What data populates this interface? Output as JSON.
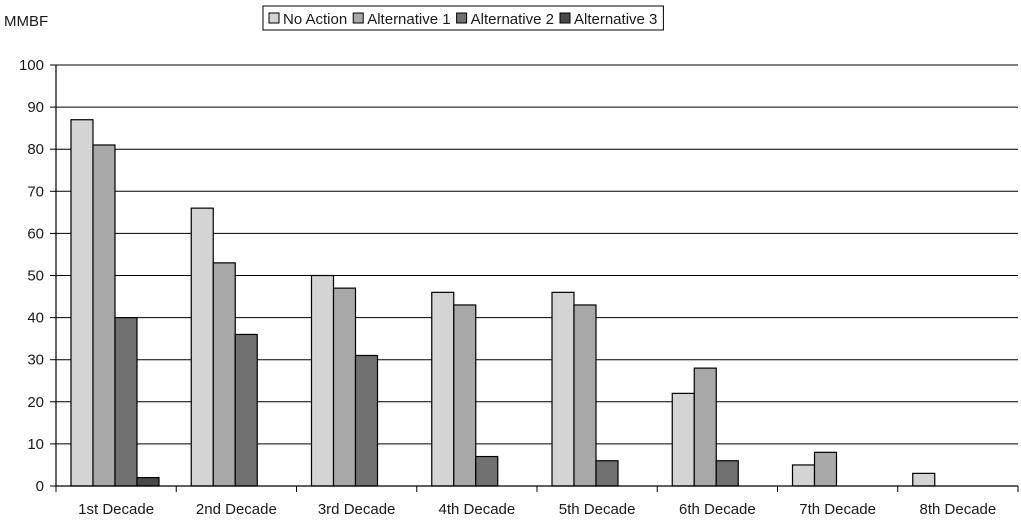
{
  "chart_data": {
    "type": "bar",
    "title": "",
    "xlabel": "",
    "ylabel": "MMBF",
    "ylim": [
      0,
      100
    ],
    "yticks": [
      0,
      10,
      20,
      30,
      40,
      50,
      60,
      70,
      80,
      90,
      100
    ],
    "grid": true,
    "legend_position": "top-center",
    "categories": [
      "1st Decade",
      "2nd Decade",
      "3rd Decade",
      "4th Decade",
      "5th Decade",
      "6th Decade",
      "7th Decade",
      "8th Decade"
    ],
    "series": [
      {
        "name": "No Action",
        "color": "#d4d4d4",
        "values": [
          87,
          66,
          50,
          46,
          46,
          22,
          5,
          3
        ]
      },
      {
        "name": "Alternative 1",
        "color": "#a8a8a8",
        "values": [
          81,
          53,
          47,
          43,
          43,
          28,
          8,
          0
        ]
      },
      {
        "name": "Alternative 2",
        "color": "#717171",
        "values": [
          40,
          36,
          31,
          7,
          6,
          6,
          0,
          0
        ]
      },
      {
        "name": "Alternative 3",
        "color": "#4a4a4a",
        "values": [
          2,
          0,
          0,
          0,
          0,
          0,
          0,
          0
        ]
      }
    ]
  }
}
